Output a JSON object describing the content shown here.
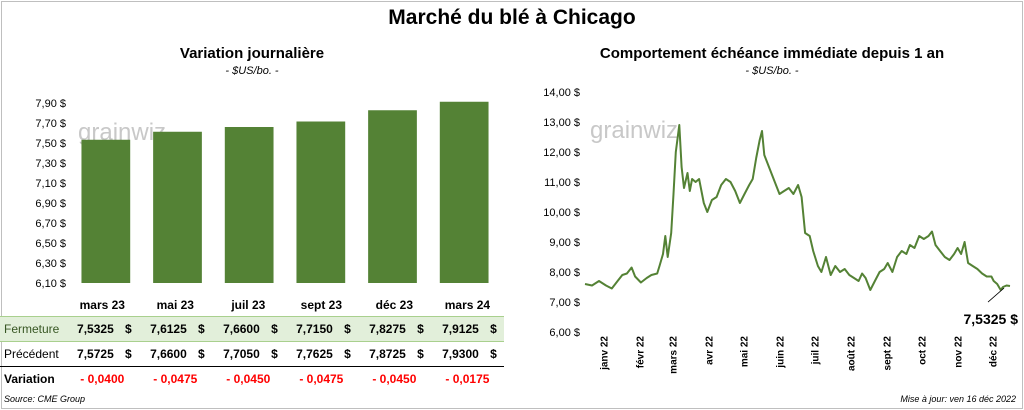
{
  "title": "Marché du blé à Chicago",
  "left": {
    "title": "Variation journalière",
    "unit": "- $US/bo. -",
    "watermark": "grainwiz",
    "table": {
      "row_labels": [
        "Fermeture",
        "Précédent",
        "Variation"
      ],
      "currency": "$",
      "contracts": [
        "mars 23",
        "mai 23",
        "juil 23",
        "sept 23",
        "déc 23",
        "mars 24"
      ],
      "close": [
        "7,5325",
        "7,6125",
        "7,6600",
        "7,7150",
        "7,8275",
        "7,9125"
      ],
      "previous": [
        "7,5725",
        "7,6600",
        "7,7050",
        "7,7625",
        "7,8725",
        "7,9300"
      ],
      "change": [
        "- 0,0400",
        "- 0,0475",
        "- 0,0450",
        "- 0,0475",
        "- 0,0450",
        "- 0,0175"
      ]
    }
  },
  "right": {
    "title": "Comportement  échéance immédiate depuis 1 an",
    "unit": "- $US/bo. -",
    "watermark": "grainwiz",
    "last_value_label": "7,5325 $"
  },
  "source": "Source: CME Group",
  "updated": "Mise à jour: ven 16 déc 2022",
  "colors": {
    "bar": "#548235",
    "line": "#548235",
    "negative": "#ff0000",
    "close_row": "#e2efda"
  },
  "chart_data": [
    {
      "type": "bar",
      "categories": [
        "mars 23",
        "mai 23",
        "juil 23",
        "sept 23",
        "déc 23",
        "mars 24"
      ],
      "values": [
        7.5325,
        7.6125,
        7.66,
        7.715,
        7.8275,
        7.9125
      ],
      "title": "Variation journalière",
      "ylabel": "- $US/bo. -",
      "ylim": [
        6.1,
        7.9
      ],
      "yticks": [
        "6,10 $",
        "6,30 $",
        "6,50 $",
        "6,70 $",
        "6,90 $",
        "7,10 $",
        "7,30 $",
        "7,50 $",
        "7,70 $",
        "7,90 $"
      ],
      "grid": false
    },
    {
      "type": "line",
      "title": "Comportement  échéance immédiate depuis 1 an",
      "ylabel": "- $US/bo. -",
      "ylim": [
        6.0,
        14.0
      ],
      "yticks": [
        "6,00 $",
        "7,00 $",
        "8,00 $",
        "9,00 $",
        "10,00 $",
        "11,00 $",
        "12,00 $",
        "13,00 $",
        "14,00 $"
      ],
      "xticks": [
        "janv 22",
        "févr 22",
        "mars 22",
        "avr 22",
        "mai 22",
        "juin 22",
        "juil 22",
        "août 22",
        "sept 22",
        "oct 22",
        "nov 22",
        "déc 22"
      ],
      "x_range": [
        "2021-12-16",
        "2022-12-16"
      ],
      "grid": false,
      "series": [
        {
          "points": [
            [
              "2021-12-16",
              7.6
            ],
            [
              "2021-12-22",
              7.55
            ],
            [
              "2021-12-28",
              7.7
            ],
            [
              "2022-01-03",
              7.55
            ],
            [
              "2022-01-08",
              7.45
            ],
            [
              "2022-01-13",
              7.7
            ],
            [
              "2022-01-17",
              7.9
            ],
            [
              "2022-01-21",
              7.95
            ],
            [
              "2022-01-25",
              8.15
            ],
            [
              "2022-01-28",
              7.85
            ],
            [
              "2022-02-02",
              7.65
            ],
            [
              "2022-02-07",
              7.8
            ],
            [
              "2022-02-11",
              7.9
            ],
            [
              "2022-02-16",
              7.95
            ],
            [
              "2022-02-18",
              8.2
            ],
            [
              "2022-02-21",
              8.6
            ],
            [
              "2022-02-23",
              9.2
            ],
            [
              "2022-02-25",
              8.5
            ],
            [
              "2022-02-28",
              9.3
            ],
            [
              "2022-03-02",
              10.6
            ],
            [
              "2022-03-04",
              12.0
            ],
            [
              "2022-03-07",
              12.9
            ],
            [
              "2022-03-09",
              11.5
            ],
            [
              "2022-03-11",
              10.8
            ],
            [
              "2022-03-14",
              11.3
            ],
            [
              "2022-03-16",
              10.7
            ],
            [
              "2022-03-18",
              11.1
            ],
            [
              "2022-03-21",
              11.0
            ],
            [
              "2022-03-24",
              11.1
            ],
            [
              "2022-03-28",
              10.3
            ],
            [
              "2022-03-31",
              10.0
            ],
            [
              "2022-04-04",
              10.4
            ],
            [
              "2022-04-08",
              10.5
            ],
            [
              "2022-04-12",
              10.9
            ],
            [
              "2022-04-16",
              11.1
            ],
            [
              "2022-04-20",
              11.0
            ],
            [
              "2022-04-24",
              10.7
            ],
            [
              "2022-04-28",
              10.3
            ],
            [
              "2022-05-02",
              10.6
            ],
            [
              "2022-05-06",
              10.9
            ],
            [
              "2022-05-09",
              11.1
            ],
            [
              "2022-05-12",
              11.8
            ],
            [
              "2022-05-15",
              12.4
            ],
            [
              "2022-05-17",
              12.7
            ],
            [
              "2022-05-19",
              11.9
            ],
            [
              "2022-05-22",
              11.6
            ],
            [
              "2022-05-25",
              11.3
            ],
            [
              "2022-05-28",
              11.0
            ],
            [
              "2022-06-01",
              10.6
            ],
            [
              "2022-06-05",
              10.7
            ],
            [
              "2022-06-09",
              10.8
            ],
            [
              "2022-06-13",
              10.6
            ],
            [
              "2022-06-17",
              10.9
            ],
            [
              "2022-06-20",
              10.5
            ],
            [
              "2022-06-23",
              9.3
            ],
            [
              "2022-06-27",
              9.2
            ],
            [
              "2022-06-30",
              8.7
            ],
            [
              "2022-07-04",
              8.2
            ],
            [
              "2022-07-07",
              8.0
            ],
            [
              "2022-07-11",
              8.5
            ],
            [
              "2022-07-15",
              7.9
            ],
            [
              "2022-07-19",
              8.2
            ],
            [
              "2022-07-23",
              8.0
            ],
            [
              "2022-07-27",
              8.1
            ],
            [
              "2022-07-31",
              7.9
            ],
            [
              "2022-08-04",
              7.8
            ],
            [
              "2022-08-08",
              7.7
            ],
            [
              "2022-08-11",
              7.95
            ],
            [
              "2022-08-14",
              7.8
            ],
            [
              "2022-08-18",
              7.4
            ],
            [
              "2022-08-22",
              7.7
            ],
            [
              "2022-08-26",
              8.0
            ],
            [
              "2022-08-30",
              8.1
            ],
            [
              "2022-09-02",
              8.3
            ],
            [
              "2022-09-06",
              8.0
            ],
            [
              "2022-09-10",
              8.5
            ],
            [
              "2022-09-14",
              8.7
            ],
            [
              "2022-09-18",
              8.6
            ],
            [
              "2022-09-21",
              8.9
            ],
            [
              "2022-09-25",
              8.8
            ],
            [
              "2022-09-29",
              9.2
            ],
            [
              "2022-10-03",
              9.1
            ],
            [
              "2022-10-07",
              9.2
            ],
            [
              "2022-10-10",
              9.35
            ],
            [
              "2022-10-13",
              8.9
            ],
            [
              "2022-10-17",
              8.7
            ],
            [
              "2022-10-21",
              8.5
            ],
            [
              "2022-10-25",
              8.4
            ],
            [
              "2022-10-29",
              8.6
            ],
            [
              "2022-11-01",
              8.8
            ],
            [
              "2022-11-04",
              8.6
            ],
            [
              "2022-11-07",
              9.0
            ],
            [
              "2022-11-10",
              8.3
            ],
            [
              "2022-11-14",
              8.2
            ],
            [
              "2022-11-18",
              8.1
            ],
            [
              "2022-11-22",
              7.95
            ],
            [
              "2022-11-26",
              7.85
            ],
            [
              "2022-11-30",
              7.85
            ],
            [
              "2022-12-02",
              7.7
            ],
            [
              "2022-12-05",
              7.6
            ],
            [
              "2022-12-08",
              7.4
            ],
            [
              "2022-12-10",
              7.5
            ],
            [
              "2022-12-13",
              7.55
            ],
            [
              "2022-12-16",
              7.5325
            ]
          ]
        }
      ]
    }
  ]
}
